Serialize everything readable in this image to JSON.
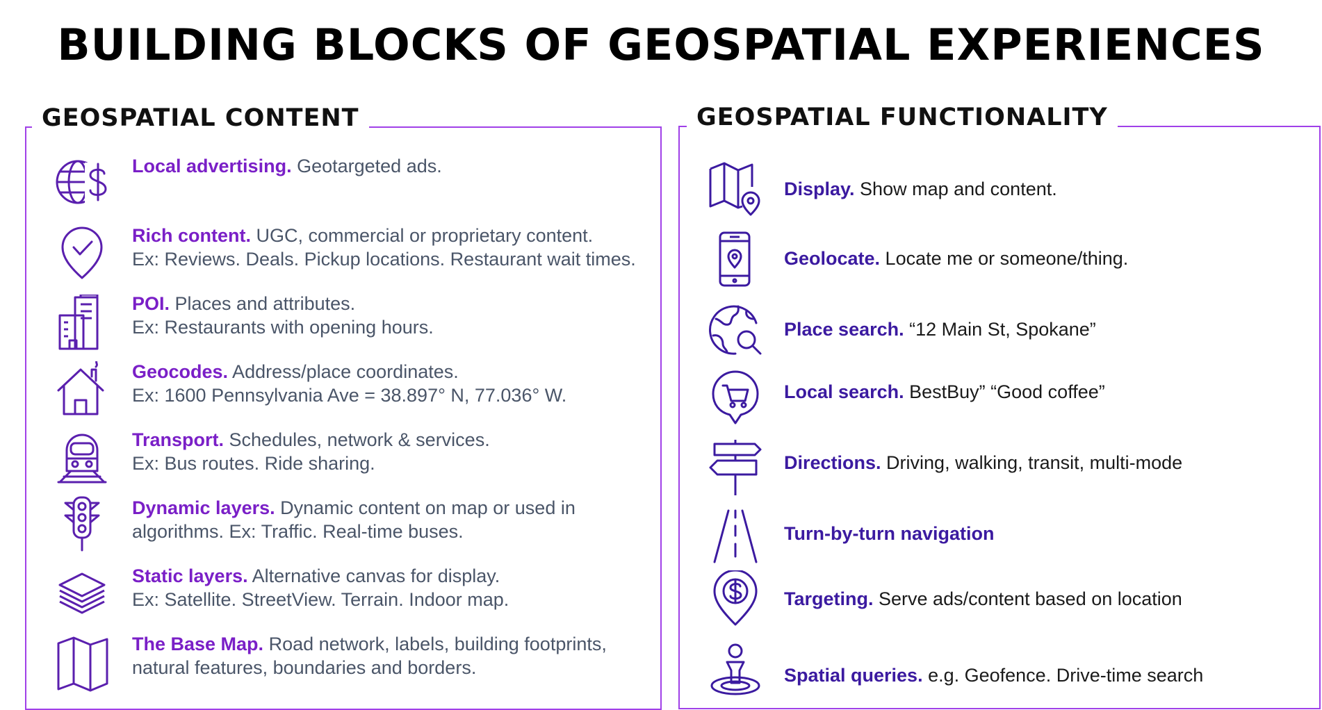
{
  "title": "BUILDING BLOCKS OF GEOSPATIAL EXPERIENCES",
  "colors": {
    "content_accent": "#7a1fc7",
    "functionality_accent": "#3b1aa0",
    "border": "#a040e8",
    "icon": "#5a1fae"
  },
  "content": {
    "heading": "GEOSPATIAL CONTENT",
    "items": [
      {
        "icon": "globe-dollar-icon",
        "label": "Local advertising.",
        "line1": " Geotargeted ads.",
        "line2": ""
      },
      {
        "icon": "location-check-icon",
        "label": "Rich content.",
        "line1": " UGC, commercial or proprietary content.",
        "line2": "Ex: Reviews. Deals. Pickup locations. Restaurant wait times."
      },
      {
        "icon": "buildings-icon",
        "label": "POI.",
        "line1": " Places and attributes.",
        "line2": "Ex: Restaurants with opening hours."
      },
      {
        "icon": "house-icon",
        "label": "Geocodes.",
        "line1": " Address/place coordinates.",
        "line2": "Ex: 1600 Pennsylvania Ave = 38.897° N, 77.036° W."
      },
      {
        "icon": "train-icon",
        "label": "Transport.",
        "line1": " Schedules, network & services.",
        "line2": "Ex: Bus routes. Ride sharing."
      },
      {
        "icon": "traffic-light-icon",
        "label": "Dynamic layers.",
        "line1": " Dynamic content on map or used in",
        "line2": "algorithms. Ex: Traffic. Real-time buses."
      },
      {
        "icon": "layers-icon",
        "label": "Static layers.",
        "line1": " Alternative canvas for display.",
        "line2": "Ex: Satellite. StreetView. Terrain. Indoor map."
      },
      {
        "icon": "folded-map-icon",
        "label": "The Base Map.",
        "line1": " Road network, labels, building footprints,",
        "line2": "natural features, boundaries and borders."
      }
    ]
  },
  "functionality": {
    "heading": "GEOSPATIAL FUNCTIONALITY",
    "items": [
      {
        "icon": "map-pin-icon",
        "label": "Display.",
        "text": " Show map and content."
      },
      {
        "icon": "phone-location-icon",
        "label": "Geolocate.",
        "text": " Locate me or someone/thing."
      },
      {
        "icon": "globe-search-icon",
        "label": "Place search.",
        "text": " “12 Main St, Spokane”"
      },
      {
        "icon": "cart-pin-icon",
        "label": "Local search.",
        "text": "  BestBuy” “Good coffee”"
      },
      {
        "icon": "signpost-icon",
        "label": "Directions.",
        "text": " Driving, walking, transit, multi-mode"
      },
      {
        "icon": "road-icon",
        "label": "Turn-by-turn navigation",
        "text": ""
      },
      {
        "icon": "dollar-pin-icon",
        "label": "Targeting.",
        "text": " Serve ads/content based on location"
      },
      {
        "icon": "person-location-icon",
        "label": "Spatial queries.",
        "text": " e.g. Geofence. Drive-time search"
      }
    ]
  }
}
